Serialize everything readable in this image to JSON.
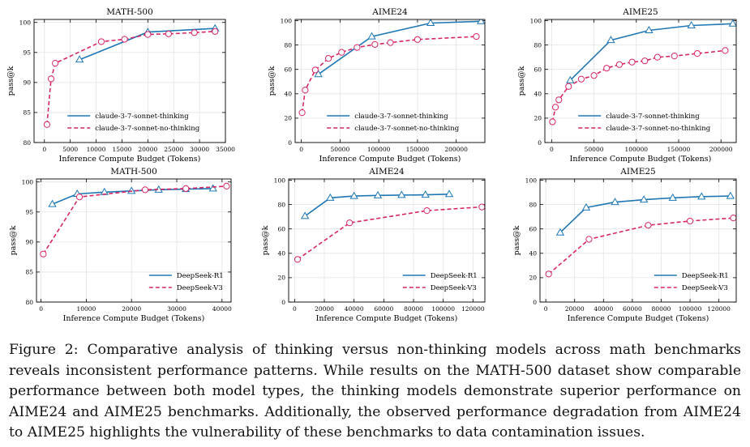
{
  "figure": {
    "caption": "Figure 2: Comparative analysis of thinking versus non-thinking models across math benchmarks reveals inconsistent performance patterns. While results on the MATH-500 dataset show comparable performance between both model types, the thinking models demonstrate superior performance on AIME24 and AIME25 benchmarks. Additionally, the observed performance degradation from AIME24 to AIME25 highlights the vulnerability of these benchmarks to data contamination issues."
  },
  "colors": {
    "thinking": "#1f77b4",
    "non_thinking": "#d62769"
  },
  "chart_data": [
    {
      "type": "line",
      "title": "MATH-500",
      "xlabel": "Inference Compute Budget (Tokens)",
      "ylabel": "pass@k",
      "xlim": [
        -2000,
        35000
      ],
      "ylim": [
        80,
        100.5
      ],
      "xticks": [
        0,
        5000,
        10000,
        15000,
        20000,
        25000,
        30000,
        35000
      ],
      "yticks": [
        80,
        85,
        90,
        95,
        100
      ],
      "grid": true,
      "legend_position": "lower-right",
      "series": [
        {
          "name": "claude-3-7-sonnet-thinking",
          "style": "solid",
          "marker": "triangle",
          "x": [
            6800,
            20000,
            33000
          ],
          "y": [
            93.8,
            98.4,
            99.0
          ]
        },
        {
          "name": "claude-3-7-sonnet-no-thinking",
          "style": "dashed",
          "marker": "circle",
          "x": [
            500,
            1300,
            2100,
            11000,
            15500,
            20000,
            24000,
            29000,
            33000
          ],
          "y": [
            83.0,
            90.6,
            93.2,
            96.8,
            97.2,
            98.0,
            98.1,
            98.3,
            98.5
          ]
        }
      ]
    },
    {
      "type": "line",
      "title": "AIME24",
      "xlabel": "Inference Compute Budget (Tokens)",
      "ylabel": "pass@k",
      "xlim": [
        -8000,
        237000
      ],
      "ylim": [
        0,
        101
      ],
      "xticks": [
        0,
        50000,
        100000,
        150000,
        200000
      ],
      "yticks": [
        0,
        20,
        40,
        60,
        80,
        100
      ],
      "grid": true,
      "legend_position": "lower-right",
      "series": [
        {
          "name": "claude-3-7-sonnet-thinking",
          "style": "solid",
          "marker": "triangle",
          "x": [
            22000,
            91000,
            167000,
            232000
          ],
          "y": [
            56,
            87,
            98,
            99.5
          ]
        },
        {
          "name": "claude-3-7-sonnet-no-thinking",
          "style": "dashed",
          "marker": "circle",
          "x": [
            1000,
            5000,
            18000,
            35000,
            52000,
            72000,
            95000,
            115000,
            150000,
            226000
          ],
          "y": [
            24.5,
            43,
            59.5,
            69,
            74,
            78,
            80.5,
            82,
            84.5,
            87
          ]
        }
      ]
    },
    {
      "type": "line",
      "title": "AIME25",
      "xlabel": "Inference Compute Budget (Tokens)",
      "ylabel": "pass@k",
      "xlim": [
        -8000,
        218000
      ],
      "ylim": [
        0,
        101
      ],
      "xticks": [
        0,
        50000,
        100000,
        150000,
        200000
      ],
      "yticks": [
        0,
        20,
        40,
        60,
        80,
        100
      ],
      "grid": true,
      "legend_position": "lower-right",
      "series": [
        {
          "name": "claude-3-7-sonnet-thinking",
          "style": "solid",
          "marker": "triangle",
          "x": [
            22000,
            70000,
            115000,
            165000,
            214000
          ],
          "y": [
            51,
            84,
            92,
            96,
            97.5
          ]
        },
        {
          "name": "claude-3-7-sonnet-no-thinking",
          "style": "dashed",
          "marker": "circle",
          "x": [
            1000,
            4500,
            8500,
            20000,
            35000,
            50000,
            65000,
            80000,
            95000,
            110000,
            125000,
            145000,
            172000,
            205000
          ],
          "y": [
            17,
            29,
            35,
            46,
            52,
            55,
            61,
            64,
            66,
            67,
            70,
            71,
            73,
            75.5
          ]
        }
      ]
    },
    {
      "type": "line",
      "title": "MATH-500",
      "xlabel": "Inference Compute Budget (Tokens)",
      "ylabel": "pass@k",
      "xlim": [
        -1000,
        42000
      ],
      "ylim": [
        80,
        100.5
      ],
      "xticks": [
        0,
        10000,
        20000,
        30000,
        40000
      ],
      "yticks": [
        80,
        85,
        90,
        95,
        100
      ],
      "grid": true,
      "legend_position": "lower-right",
      "series": [
        {
          "name": "DeepSeek-R1",
          "style": "solid",
          "marker": "triangle",
          "x": [
            2500,
            8000,
            14000,
            20000,
            26000,
            32000,
            38000
          ],
          "y": [
            96.3,
            98.0,
            98.3,
            98.5,
            98.7,
            98.8,
            98.9
          ]
        },
        {
          "name": "DeepSeek-V3",
          "style": "dashed",
          "marker": "circle",
          "x": [
            500,
            8500,
            23000,
            32000,
            41000
          ],
          "y": [
            88.0,
            97.5,
            98.7,
            98.9,
            99.3
          ]
        }
      ]
    },
    {
      "type": "line",
      "title": "AIME24",
      "xlabel": "Inference Compute Budget (Tokens)",
      "ylabel": "pass@k",
      "xlim": [
        -4000,
        128000
      ],
      "ylim": [
        0,
        101
      ],
      "xticks": [
        0,
        20000,
        40000,
        60000,
        80000,
        100000,
        120000
      ],
      "yticks": [
        0,
        20,
        40,
        60,
        80,
        100
      ],
      "grid": true,
      "legend_position": "lower-right",
      "series": [
        {
          "name": "DeepSeek-R1",
          "style": "solid",
          "marker": "triangle",
          "x": [
            7000,
            24000,
            40000,
            56000,
            72000,
            88000,
            104000
          ],
          "y": [
            70.5,
            85.5,
            87,
            87.5,
            87.8,
            88,
            88.5
          ]
        },
        {
          "name": "DeepSeek-V3",
          "style": "dashed",
          "marker": "circle",
          "x": [
            2000,
            37000,
            89000,
            126000
          ],
          "y": [
            35,
            65,
            75,
            78
          ]
        }
      ]
    },
    {
      "type": "line",
      "title": "AIME25",
      "xlabel": "Inference Compute Budget (Tokens)",
      "ylabel": "pass@k",
      "xlim": [
        -4000,
        132000
      ],
      "ylim": [
        0,
        101
      ],
      "xticks": [
        0,
        20000,
        40000,
        60000,
        80000,
        100000,
        120000
      ],
      "yticks": [
        0,
        20,
        40,
        60,
        80,
        100
      ],
      "grid": true,
      "legend_position": "lower-right",
      "series": [
        {
          "name": "DeepSeek-R1",
          "style": "solid",
          "marker": "triangle",
          "x": [
            10000,
            28000,
            48000,
            68000,
            88000,
            108000,
            128000
          ],
          "y": [
            57,
            77.5,
            82,
            84,
            85.5,
            86.5,
            87
          ]
        },
        {
          "name": "DeepSeek-V3",
          "style": "dashed",
          "marker": "circle",
          "x": [
            2000,
            30000,
            71000,
            100000,
            130000
          ],
          "y": [
            23,
            51.5,
            63,
            66.5,
            69
          ]
        }
      ]
    }
  ]
}
